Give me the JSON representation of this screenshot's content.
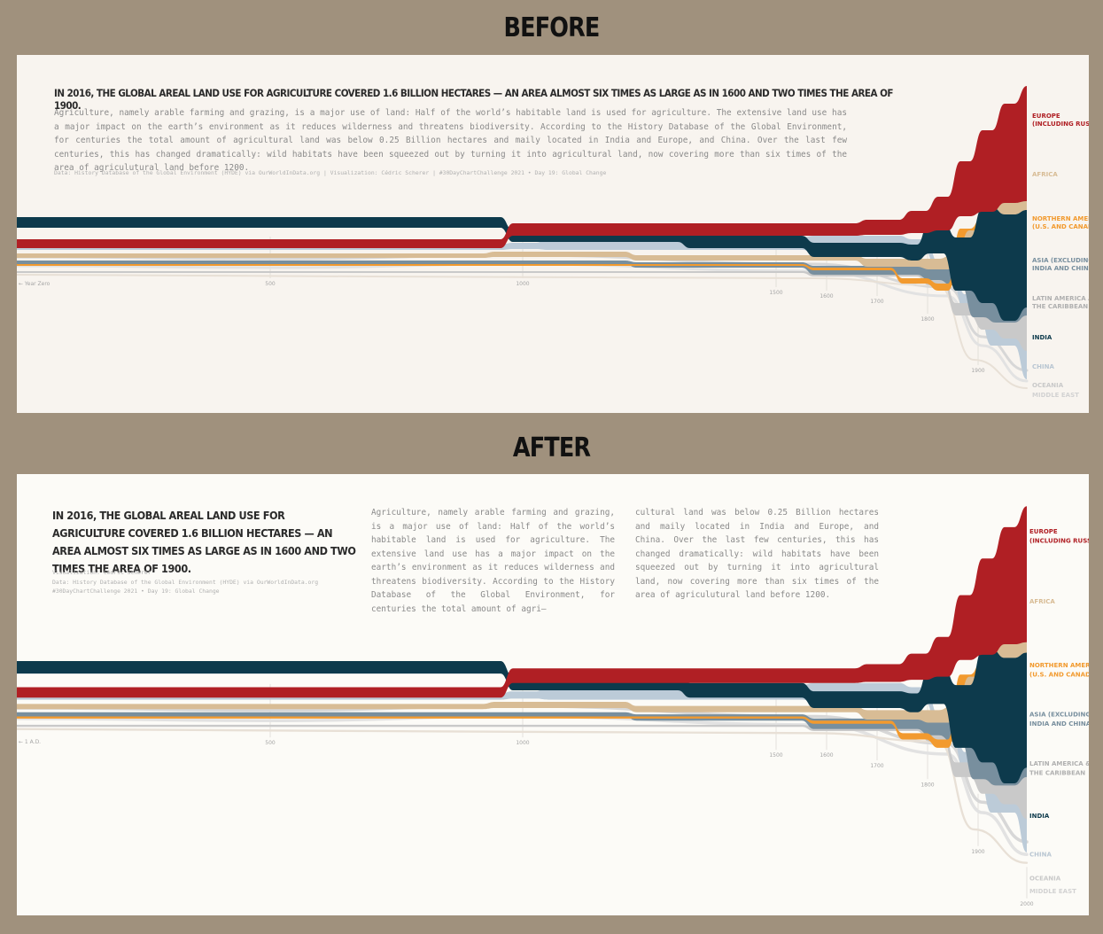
{
  "labels": {
    "before": "BEFORE",
    "after": "AFTER"
  },
  "before": {
    "title": "In 2016, the global areal land use for agriculture covered 1.6 billion hectares — an area almost six times as large as in 1600 and two times the area of 1900.",
    "body": "Agriculture, namely arable farming and grazing, is a major use of land: Half of the world’s habitable land is used for agriculture. The extensive land use has a major impact on the earth’s environment as it reduces wilderness and threatens biodiversity. According to the History Database of the Global Environment, for centuries the total amount of agricultural land was below 0.25 Billion hectares and maily located in India and Europe, and China. Over the last few centuries, this has changed dramatically: wild habitats have been squeezed out by turning it into agricultural land, now covering more than six times of the area of agriculutural land before 1200.",
    "credit": "Data: History Database of the Global Environment (HYDE) via OurWorldInData.org | Visualization: Cédric Scherer | #30DayChartChallenge 2021 • Day 19: Global Change",
    "x_start_label": "← Year Zero"
  },
  "after": {
    "title": "In 2016, the global areal land use for agriculture covered 1.6 billion hectares — an area almost six times as large as in 1600 and two times the area of 1900.",
    "body_col1": "Agriculture, namely arable farming and grazing, is a major use of land: Half of the world’s habitable land is used for agriculture. The extensive land use has a major impact on the earth’s environment as it reduces wilderness and threatens biodiversity. According to the History Database of the Global Environment, for centuries the total amount of agri–",
    "body_col2": "cultural land was below 0.25 Billion hectares and maily located in India and Europe, and China. Over the last few centuries, this has changed dramatically: wild habitats have been squeezed out by turning it into agricultural land, now covering more than six times of the area of agriculutural land before 1200.",
    "credit_lines": [
      "Visualization: Cédric Scherer",
      "Data: History Database of the Global Environment (HYDE) via OurWorldInData.org",
      "#30DayChartChallenge 2021 • Day 19: Global Change"
    ],
    "x_start_label": "← 1 A.D."
  },
  "chart_data": [
    {
      "type": "area",
      "panel": "before",
      "x_ticks": [
        "500",
        "1000",
        "1500",
        "1600",
        "1700",
        "1800",
        "1900"
      ],
      "series": [
        {
          "name": "EUROPE (INCLUDING RUSSIA)",
          "color": "#b01f24"
        },
        {
          "name": "AFRICA",
          "color": "#d8bc95"
        },
        {
          "name": "NORTHERN AMERICA (U.S. AND CANADA)",
          "color": "#f29a2e"
        },
        {
          "name": "ASIA (EXCLUDING INDIA AND CHINA)",
          "color": "#788f9e"
        },
        {
          "name": "LATIN AMERICA AND THE CARIBBEAN",
          "color": "#c6c6c6"
        },
        {
          "name": "INDIA",
          "color": "#0d3a4c"
        },
        {
          "name": "CHINA",
          "color": "#bccbd8"
        },
        {
          "name": "OCEANIA",
          "color": "#d7d7d7"
        },
        {
          "name": "MIDDLE EAST",
          "color": "#e2e2e2"
        }
      ]
    },
    {
      "type": "area",
      "panel": "after",
      "x_ticks": [
        "500",
        "1000",
        "1500",
        "1600",
        "1700",
        "1800",
        "1900",
        "2000"
      ],
      "series": [
        {
          "name": "EUROPE (INCLUDING RUSSIA)",
          "color": "#b01f24"
        },
        {
          "name": "AFRICA",
          "color": "#d8bc95"
        },
        {
          "name": "NORTHERN AMERICA (U.S. AND CANADA)",
          "color": "#f29a2e"
        },
        {
          "name": "ASIA (EXCLUDING INDIA AND CHINA)",
          "color": "#788f9e"
        },
        {
          "name": "LATIN AMERICA & THE CARIBBEAN",
          "color": "#c6c6c6"
        },
        {
          "name": "INDIA",
          "color": "#0d3a4c"
        },
        {
          "name": "CHINA",
          "color": "#bccbd8"
        },
        {
          "name": "OCEANIA",
          "color": "#d7d7d7"
        },
        {
          "name": "MIDDLE EAST",
          "color": "#e2e2e2"
        }
      ]
    }
  ],
  "legend_colors": {
    "EUROPE": "#b01f24",
    "AFRICA": "#d8bc95",
    "NORTHERN AMERICA": "#f29a2e",
    "ASIA": "#788f9e",
    "LATIN AMERICA": "#b0b0b0",
    "INDIA": "#0d3a4c",
    "CHINA": "#b9c6d2",
    "OCEANIA": "#c9c9c9",
    "MIDDLE EAST": "#d2d2d2"
  }
}
